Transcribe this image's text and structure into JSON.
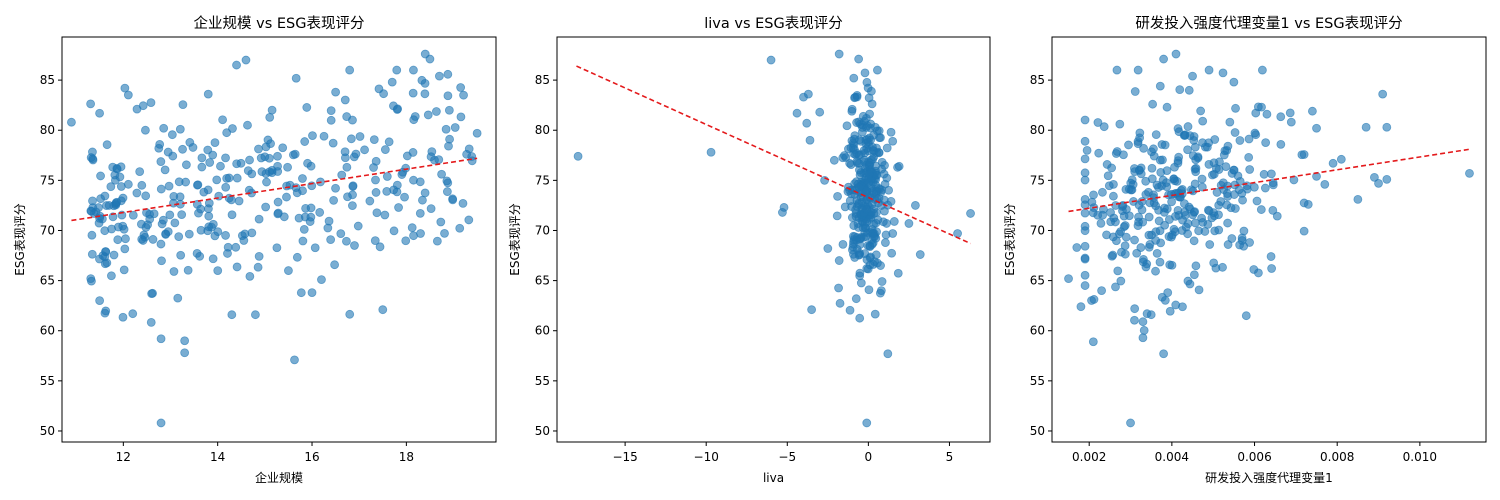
{
  "chart_data": [
    {
      "type": "scatter",
      "title": "企业规模 vs ESG表现评分",
      "xlabel": "企业规模",
      "ylabel": "ESG表现评分",
      "xlim": [
        10.7,
        19.9
      ],
      "ylim": [
        48.9,
        89.3
      ],
      "xticks": [
        12,
        14,
        16,
        18
      ],
      "yticks": [
        50,
        55,
        60,
        65,
        70,
        75,
        80,
        85
      ],
      "x_decimals": 0,
      "trend": [
        [
          10.9,
          71.0
        ],
        [
          19.5,
          77.2
        ]
      ],
      "points_gen": {
        "n": 360,
        "seed": 11,
        "xdist": "uniform",
        "xmin": 11.3,
        "xmax": 19.4,
        "xskew": 0.35,
        "slope": 0.72,
        "intercept": 63.2,
        "sd": 4.6
      },
      "points": [
        [
          10.9,
          80.8
        ],
        [
          12.8,
          50.8
        ],
        [
          13.3,
          57.8
        ],
        [
          13.3,
          59.0
        ],
        [
          12.8,
          59.2
        ],
        [
          12.2,
          61.7
        ],
        [
          14.8,
          61.6
        ],
        [
          14.3,
          61.6
        ],
        [
          17.5,
          62.1
        ],
        [
          13.8,
          83.6
        ],
        [
          14.4,
          86.5
        ],
        [
          14.6,
          87.0
        ],
        [
          18.4,
          87.6
        ],
        [
          18.5,
          87.1
        ],
        [
          18.7,
          85.4
        ],
        [
          17.7,
          84.8
        ],
        [
          16.5,
          83.8
        ],
        [
          19.5,
          79.7
        ],
        [
          19.2,
          72.7
        ],
        [
          18.3,
          69.7
        ],
        [
          16.9,
          68.5
        ],
        [
          15.5,
          66.0
        ],
        [
          16.0,
          63.8
        ],
        [
          16.2,
          65.1
        ],
        [
          12.6,
          63.7
        ]
      ]
    },
    {
      "type": "scatter",
      "title": "liva vs ESG表现评分",
      "xlabel": "liva",
      "ylabel": "ESG表现评分",
      "xlim": [
        -19.2,
        7.5
      ],
      "ylim": [
        48.9,
        89.3
      ],
      "xticks": [
        -15,
        -10,
        -5,
        0,
        5
      ],
      "yticks": [
        50,
        55,
        60,
        65,
        70,
        75,
        80,
        85
      ],
      "x_decimals": 0,
      "trend": [
        [
          -18.0,
          86.4
        ],
        [
          6.3,
          68.7
        ]
      ],
      "points_gen": {
        "n": 300,
        "seed": 23,
        "xdist": "normal",
        "xmean": -0.2,
        "xsd": 0.6,
        "ymean": 73.5,
        "ysd": 4.8
      },
      "points": [
        [
          -17.9,
          77.4
        ],
        [
          -9.7,
          77.8
        ],
        [
          -6.0,
          87.0
        ],
        [
          -4.0,
          83.3
        ],
        [
          -3.7,
          83.6
        ],
        [
          -4.4,
          81.7
        ],
        [
          -3.6,
          79.0
        ],
        [
          -3.0,
          81.8
        ],
        [
          -3.8,
          80.7
        ],
        [
          -5.3,
          71.8
        ],
        [
          -5.2,
          72.3
        ],
        [
          -2.1,
          77.0
        ],
        [
          -2.7,
          75.0
        ],
        [
          -2.5,
          68.2
        ],
        [
          -1.9,
          73.4
        ],
        [
          -1.8,
          67.0
        ],
        [
          -3.5,
          62.1
        ],
        [
          -1.8,
          87.6
        ],
        [
          -0.6,
          87.1
        ],
        [
          1.2,
          57.7
        ],
        [
          -0.1,
          50.8
        ],
        [
          0.8,
          64.0
        ],
        [
          1.4,
          79.8
        ],
        [
          1.5,
          78.9
        ],
        [
          1.8,
          76.3
        ],
        [
          1.9,
          76.4
        ],
        [
          1.4,
          72.9
        ],
        [
          1.6,
          70.9
        ],
        [
          1.5,
          69.7
        ],
        [
          2.5,
          70.7
        ],
        [
          2.9,
          72.5
        ],
        [
          3.2,
          67.6
        ],
        [
          5.5,
          69.7
        ],
        [
          6.3,
          71.7
        ],
        [
          -0.9,
          85.2
        ]
      ]
    },
    {
      "type": "scatter",
      "title": "研发投入强度代理变量1 vs ESG表现评分",
      "xlabel": "研发投入强度代理变量1",
      "ylabel": "ESG表现评分",
      "xlim": [
        0.0011,
        0.0116
      ],
      "ylim": [
        48.9,
        89.3
      ],
      "xticks": [
        0.002,
        0.004,
        0.006,
        0.008,
        0.01
      ],
      "yticks": [
        50,
        55,
        60,
        65,
        70,
        75,
        80,
        85
      ],
      "x_decimals": 3,
      "trend": [
        [
          0.0015,
          71.9
        ],
        [
          0.0112,
          78.1
        ]
      ],
      "points_gen": {
        "n": 340,
        "seed": 37,
        "xdist": "lognormal",
        "xmean": 0.0042,
        "xsd": 0.0013,
        "xmin": 0.0019,
        "xmax": 0.0072,
        "slope": 640,
        "intercept": 70.9,
        "sd": 4.7
      },
      "points": [
        [
          0.003,
          50.8
        ],
        [
          0.0021,
          58.9
        ],
        [
          0.0018,
          62.4
        ],
        [
          0.0015,
          65.2
        ],
        [
          0.0017,
          68.3
        ],
        [
          0.0023,
          64.0
        ],
        [
          0.0031,
          62.2
        ],
        [
          0.0034,
          61.7
        ],
        [
          0.0035,
          61.6
        ],
        [
          0.0033,
          60.9
        ],
        [
          0.0033,
          59.3
        ],
        [
          0.0038,
          57.7
        ],
        [
          0.0039,
          63.8
        ],
        [
          0.0041,
          87.6
        ],
        [
          0.0038,
          87.1
        ],
        [
          0.0045,
          85.4
        ],
        [
          0.0055,
          84.8
        ],
        [
          0.0063,
          81.6
        ],
        [
          0.0074,
          81.9
        ],
        [
          0.0075,
          80.2
        ],
        [
          0.0087,
          80.3
        ],
        [
          0.0091,
          83.6
        ],
        [
          0.0092,
          80.3
        ],
        [
          0.0092,
          75.1
        ],
        [
          0.009,
          74.7
        ],
        [
          0.0089,
          75.3
        ],
        [
          0.0085,
          73.1
        ],
        [
          0.0081,
          77.1
        ],
        [
          0.0079,
          76.7
        ],
        [
          0.0077,
          74.6
        ],
        [
          0.0075,
          75.4
        ],
        [
          0.0073,
          72.6
        ],
        [
          0.0112,
          75.7
        ],
        [
          0.0058,
          61.5
        ],
        [
          0.0064,
          67.4
        ],
        [
          0.0057,
          69.0
        ]
      ]
    }
  ]
}
